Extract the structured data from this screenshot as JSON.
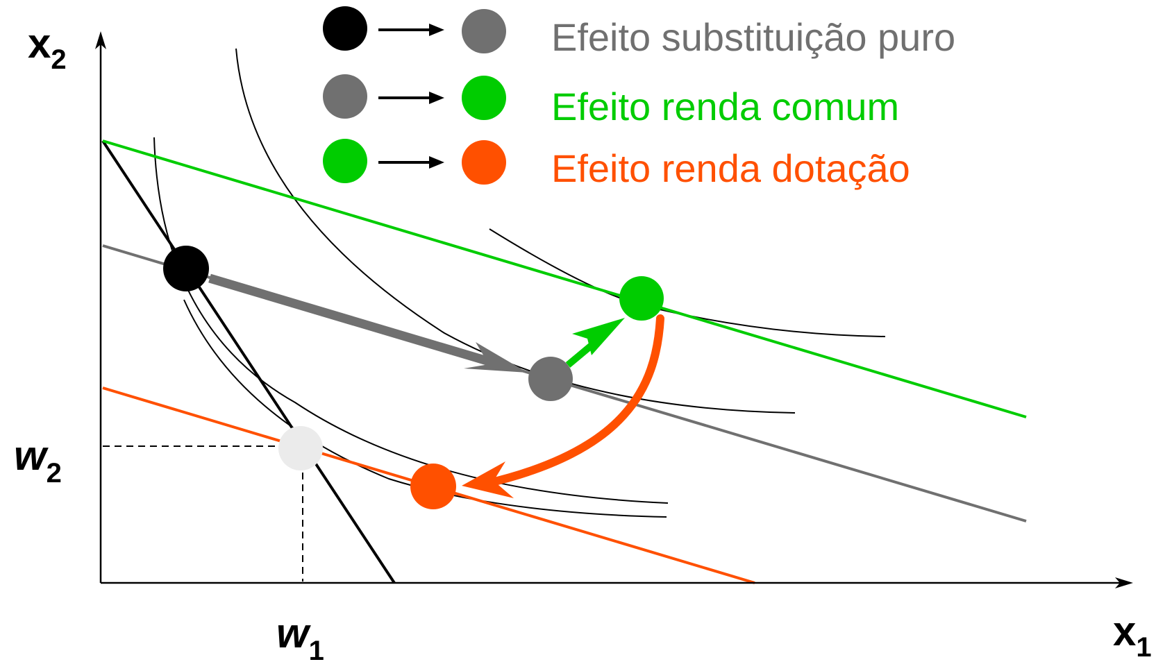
{
  "axes": {
    "x_label": "x",
    "x_sub": "1",
    "y_label": "x",
    "y_sub": "2"
  },
  "endowment": {
    "w1_label": "w",
    "w1_sub": "1",
    "w2_label": "w",
    "w2_sub": "2"
  },
  "legend": [
    {
      "text": "Efeito substituição puro",
      "from_color": "#000000",
      "to_color": "#707070",
      "text_color": "#707070"
    },
    {
      "text": "Efeito renda comum",
      "from_color": "#707070",
      "to_color": "#00cc00",
      "text_color": "#00cc00"
    },
    {
      "text": "Efeito renda dotação",
      "from_color": "#00cc00",
      "to_color": "#ff5000",
      "text_color": "#ff5000"
    }
  ],
  "colors": {
    "original_budget": "#000000",
    "compensated_budget": "#707070",
    "common_income_budget": "#00cc00",
    "endowment_budget": "#ff5000",
    "endowment_point": "#ebebeb",
    "indifference_curve": "#000000"
  }
}
